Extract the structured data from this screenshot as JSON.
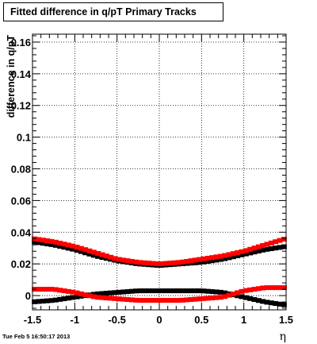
{
  "title": "Fitted difference in q/pT  Primary Tracks",
  "timestamp": "Tue Feb  5 16:50:17 2013",
  "chart_data": {
    "type": "scatter",
    "title": "Fitted difference in q/pT  Primary Tracks",
    "xlabel": "η",
    "ylabel": "difference in q/pT",
    "xlim": [
      -1.5,
      1.5
    ],
    "ylim": [
      -0.009,
      0.165
    ],
    "grid": true,
    "x_ticks": [
      "-1.5",
      "-1",
      "-0.5",
      "0",
      "0.5",
      "1",
      "1.5"
    ],
    "y_ticks": [
      "0",
      "0.02",
      "0.04",
      "0.06",
      "0.08",
      "0.1",
      "0.12",
      "0.14",
      "0.16"
    ],
    "series": [
      {
        "color": "#000000",
        "x": [
          -1.5,
          -1.25,
          -1.0,
          -0.75,
          -0.5,
          -0.25,
          0.0,
          0.25,
          0.5,
          0.75,
          1.0,
          1.25,
          1.5
        ],
        "y": [
          0.034,
          0.032,
          0.029,
          0.025,
          0.022,
          0.02,
          0.019,
          0.02,
          0.021,
          0.023,
          0.026,
          0.029,
          0.031
        ]
      },
      {
        "color": "#ff0000",
        "x": [
          -1.5,
          -1.25,
          -1.0,
          -0.75,
          -0.5,
          -0.25,
          0.0,
          0.25,
          0.5,
          0.75,
          1.0,
          1.25,
          1.5
        ],
        "y": [
          0.036,
          0.034,
          0.031,
          0.027,
          0.023,
          0.021,
          0.02,
          0.021,
          0.023,
          0.025,
          0.028,
          0.032,
          0.036
        ]
      },
      {
        "color": "#000000",
        "x": [
          -1.5,
          -1.25,
          -1.0,
          -0.75,
          -0.5,
          -0.25,
          0.0,
          0.25,
          0.5,
          0.75,
          1.0,
          1.25,
          1.5
        ],
        "y": [
          -0.004,
          -0.003,
          -0.001,
          0.001,
          0.002,
          0.003,
          0.003,
          0.003,
          0.003,
          0.002,
          -0.001,
          -0.004,
          -0.006
        ]
      },
      {
        "color": "#ff0000",
        "x": [
          -1.5,
          -1.25,
          -1.0,
          -0.75,
          -0.5,
          -0.25,
          0.0,
          0.25,
          0.5,
          0.75,
          1.0,
          1.25,
          1.5
        ],
        "y": [
          0.004,
          0.004,
          0.002,
          -0.001,
          -0.002,
          -0.003,
          -0.003,
          -0.003,
          -0.002,
          -0.001,
          0.003,
          0.005,
          0.005
        ]
      }
    ]
  }
}
